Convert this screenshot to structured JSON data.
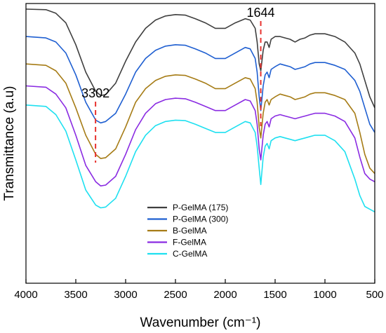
{
  "chart_data": {
    "type": "line",
    "xlabel": "Wavenumber (cm⁻¹)",
    "ylabel": "Transmittance (a.u)",
    "xlim": [
      4000,
      500
    ],
    "x_reversed": true,
    "y_ticks_shown": false,
    "legend_position": "bottom-center",
    "xticks": [
      4000,
      3500,
      3000,
      2500,
      2000,
      1500,
      1000,
      500
    ],
    "xtick_labels": [
      "4000",
      "3500",
      "3000",
      "2500",
      "2000",
      "1500",
      "1000",
      "500"
    ],
    "annotations": [
      {
        "label": "3302",
        "x": 3302,
        "style": "dashed",
        "color": "#e8332f"
      },
      {
        "label": "1644",
        "x": 1644,
        "style": "dashed",
        "color": "#e8332f"
      }
    ],
    "x": [
      4000,
      3800,
      3700,
      3600,
      3500,
      3400,
      3300,
      3250,
      3200,
      3100,
      3000,
      2900,
      2800,
      2700,
      2600,
      2500,
      2400,
      2300,
      2200,
      2100,
      2000,
      1900,
      1800,
      1750,
      1700,
      1680,
      1660,
      1644,
      1620,
      1600,
      1580,
      1560,
      1540,
      1500,
      1450,
      1400,
      1350,
      1300,
      1250,
      1200,
      1150,
      1100,
      1000,
      900,
      800,
      700,
      650,
      600,
      550,
      500
    ],
    "series": [
      {
        "name": "P-GelMA (175)",
        "color": "#3f3f3f",
        "values": [
          1.0,
          0.998,
          0.985,
          0.95,
          0.87,
          0.77,
          0.7,
          0.685,
          0.688,
          0.73,
          0.81,
          0.88,
          0.93,
          0.96,
          0.975,
          0.98,
          0.978,
          0.965,
          0.95,
          0.93,
          0.93,
          0.95,
          0.965,
          0.96,
          0.93,
          0.88,
          0.8,
          0.775,
          0.85,
          0.88,
          0.88,
          0.86,
          0.89,
          0.9,
          0.9,
          0.895,
          0.89,
          0.88,
          0.89,
          0.895,
          0.905,
          0.91,
          0.91,
          0.9,
          0.88,
          0.84,
          0.8,
          0.74,
          0.68,
          0.64
        ]
      },
      {
        "name": "P-GelMA (300)",
        "color": "#1f5fd1",
        "values": [
          0.9,
          0.895,
          0.88,
          0.84,
          0.76,
          0.66,
          0.595,
          0.585,
          0.59,
          0.62,
          0.69,
          0.77,
          0.82,
          0.85,
          0.865,
          0.87,
          0.868,
          0.855,
          0.84,
          0.82,
          0.82,
          0.84,
          0.86,
          0.855,
          0.82,
          0.77,
          0.68,
          0.63,
          0.72,
          0.76,
          0.77,
          0.75,
          0.78,
          0.79,
          0.8,
          0.795,
          0.79,
          0.78,
          0.785,
          0.79,
          0.8,
          0.805,
          0.805,
          0.795,
          0.78,
          0.74,
          0.7,
          0.64,
          0.58,
          0.55
        ]
      },
      {
        "name": "B-GelMA",
        "color": "#a67c16",
        "values": [
          0.8,
          0.795,
          0.775,
          0.73,
          0.64,
          0.54,
          0.47,
          0.455,
          0.458,
          0.49,
          0.57,
          0.66,
          0.71,
          0.74,
          0.755,
          0.76,
          0.758,
          0.745,
          0.73,
          0.71,
          0.71,
          0.73,
          0.75,
          0.745,
          0.71,
          0.66,
          0.57,
          0.53,
          0.62,
          0.66,
          0.67,
          0.65,
          0.67,
          0.68,
          0.69,
          0.685,
          0.68,
          0.67,
          0.675,
          0.68,
          0.69,
          0.695,
          0.695,
          0.685,
          0.67,
          0.62,
          0.55,
          0.47,
          0.42,
          0.4
        ]
      },
      {
        "name": "F-GelMA",
        "color": "#8a2be2",
        "values": [
          0.72,
          0.715,
          0.69,
          0.64,
          0.54,
          0.43,
          0.37,
          0.355,
          0.358,
          0.39,
          0.47,
          0.56,
          0.62,
          0.655,
          0.67,
          0.675,
          0.673,
          0.66,
          0.645,
          0.63,
          0.63,
          0.65,
          0.67,
          0.665,
          0.63,
          0.58,
          0.49,
          0.45,
          0.54,
          0.58,
          0.59,
          0.57,
          0.6,
          0.61,
          0.615,
          0.61,
          0.605,
          0.6,
          0.605,
          0.61,
          0.615,
          0.62,
          0.62,
          0.61,
          0.59,
          0.53,
          0.46,
          0.4,
          0.38,
          0.37
        ]
      },
      {
        "name": "C-GelMA",
        "color": "#1ee0f0",
        "values": [
          0.65,
          0.645,
          0.615,
          0.555,
          0.45,
          0.34,
          0.285,
          0.275,
          0.278,
          0.31,
          0.39,
          0.48,
          0.54,
          0.575,
          0.59,
          0.595,
          0.593,
          0.58,
          0.565,
          0.55,
          0.55,
          0.57,
          0.59,
          0.585,
          0.55,
          0.5,
          0.42,
          0.36,
          0.46,
          0.5,
          0.51,
          0.49,
          0.52,
          0.53,
          0.535,
          0.53,
          0.525,
          0.52,
          0.525,
          0.53,
          0.535,
          0.54,
          0.54,
          0.52,
          0.48,
          0.38,
          0.32,
          0.28,
          0.27,
          0.26
        ]
      }
    ]
  }
}
